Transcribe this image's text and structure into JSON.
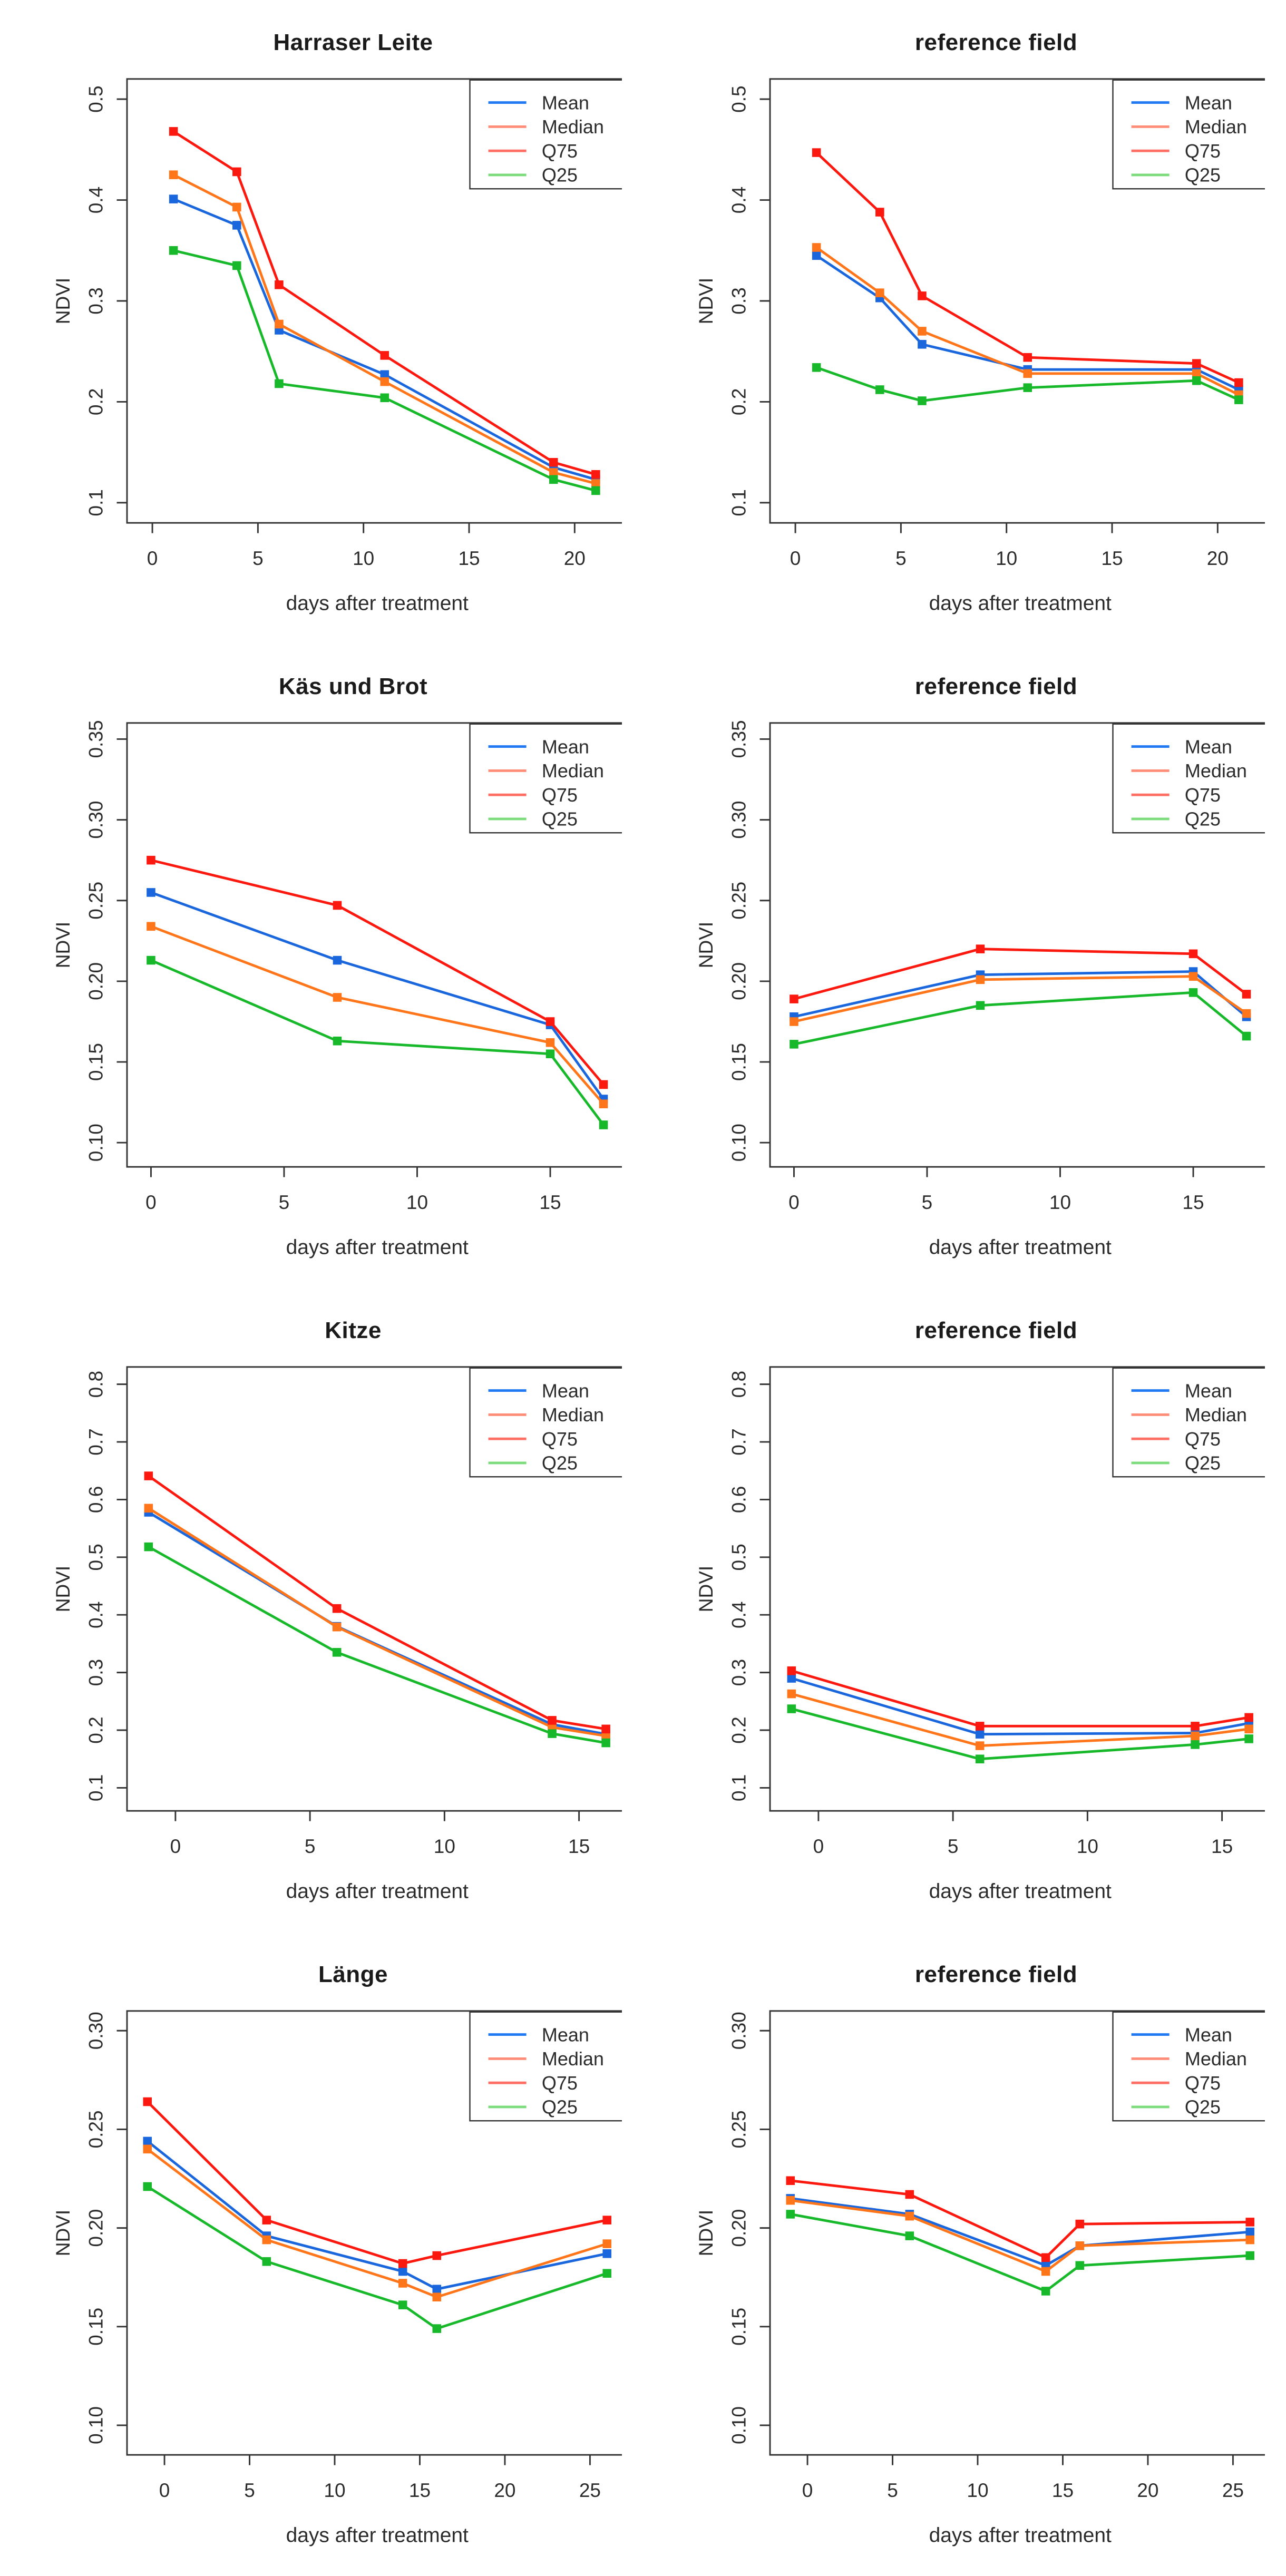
{
  "figure": {
    "background": "#ffffff",
    "rows": 4,
    "cols": 2,
    "description_note": "grid of 8 NDVI line charts"
  },
  "series_styles": {
    "Mean": {
      "color": "#1a66dd",
      "legend_color": "#2079f2"
    },
    "Median": {
      "color": "#ff7519",
      "legend_color": "#ff8d78"
    },
    "Q75": {
      "color": "#fb180e",
      "legend_color": "#ff6e63"
    },
    "Q25": {
      "color": "#17b92b",
      "legend_color": "#7cdc7c"
    }
  },
  "chart_data": [
    {
      "type": "line",
      "title": "Harraser Leite",
      "xlabel": "days after treatment",
      "ylabel": "NDVI",
      "grid": false,
      "legend_position": "top-right",
      "legend": [
        "Mean",
        "Median",
        "Q75",
        "Q25"
      ],
      "x": [
        1,
        4,
        6,
        11,
        19,
        21
      ],
      "xlim": [
        -1.2,
        22.5
      ],
      "ylim": [
        0.08,
        0.52
      ],
      "xticks": [
        0,
        5,
        10,
        15,
        20
      ],
      "yticks": [
        0.1,
        0.2,
        0.3,
        0.4,
        0.5
      ],
      "ytick_labels": [
        "0.1",
        "0.2",
        "0.3",
        "0.4",
        "0.5"
      ],
      "series": [
        {
          "name": "Mean",
          "values": [
            0.401,
            0.375,
            0.271,
            0.227,
            0.135,
            0.123
          ]
        },
        {
          "name": "Median",
          "values": [
            0.425,
            0.393,
            0.277,
            0.22,
            0.13,
            0.119
          ]
        },
        {
          "name": "Q75",
          "values": [
            0.468,
            0.428,
            0.316,
            0.246,
            0.14,
            0.128
          ]
        },
        {
          "name": "Q25",
          "values": [
            0.35,
            0.335,
            0.218,
            0.204,
            0.123,
            0.112
          ]
        }
      ]
    },
    {
      "type": "line",
      "title": "reference field",
      "xlabel": "days after treatment",
      "ylabel": "NDVI",
      "grid": false,
      "legend_position": "top-right",
      "legend": [
        "Mean",
        "Median",
        "Q75",
        "Q25"
      ],
      "x": [
        1,
        4,
        6,
        11,
        19,
        21
      ],
      "xlim": [
        -1.2,
        22.5
      ],
      "ylim": [
        0.08,
        0.52
      ],
      "xticks": [
        0,
        5,
        10,
        15,
        20
      ],
      "yticks": [
        0.1,
        0.2,
        0.3,
        0.4,
        0.5
      ],
      "ytick_labels": [
        "0.1",
        "0.2",
        "0.3",
        "0.4",
        "0.5"
      ],
      "series": [
        {
          "name": "Mean",
          "values": [
            0.345,
            0.303,
            0.257,
            0.232,
            0.232,
            0.212
          ]
        },
        {
          "name": "Median",
          "values": [
            0.353,
            0.308,
            0.27,
            0.228,
            0.228,
            0.207
          ]
        },
        {
          "name": "Q75",
          "values": [
            0.447,
            0.388,
            0.305,
            0.244,
            0.238,
            0.219
          ]
        },
        {
          "name": "Q25",
          "values": [
            0.234,
            0.212,
            0.201,
            0.214,
            0.221,
            0.202
          ]
        }
      ]
    },
    {
      "type": "line",
      "title": "Käs und Brot",
      "xlabel": "days after treatment",
      "ylabel": "NDVI",
      "grid": false,
      "legend_position": "top-right",
      "legend": [
        "Mean",
        "Median",
        "Q75",
        "Q25"
      ],
      "x": [
        0,
        7,
        15,
        17
      ],
      "xlim": [
        -0.9,
        17.9
      ],
      "ylim": [
        0.085,
        0.36
      ],
      "xticks": [
        0,
        5,
        10,
        15
      ],
      "yticks": [
        0.1,
        0.15,
        0.2,
        0.25,
        0.3,
        0.35
      ],
      "ytick_labels": [
        "0.10",
        "0.15",
        "0.20",
        "0.25",
        "0.30",
        "0.35"
      ],
      "series": [
        {
          "name": "Mean",
          "values": [
            0.255,
            0.213,
            0.173,
            0.127
          ]
        },
        {
          "name": "Median",
          "values": [
            0.234,
            0.19,
            0.162,
            0.124
          ]
        },
        {
          "name": "Q75",
          "values": [
            0.275,
            0.247,
            0.175,
            0.136
          ]
        },
        {
          "name": "Q25",
          "values": [
            0.213,
            0.163,
            0.155,
            0.111
          ]
        }
      ]
    },
    {
      "type": "line",
      "title": "reference field",
      "xlabel": "days after treatment",
      "ylabel": "NDVI",
      "grid": false,
      "legend_position": "top-right",
      "legend": [
        "Mean",
        "Median",
        "Q75",
        "Q25"
      ],
      "x": [
        0,
        7,
        15,
        17
      ],
      "xlim": [
        -0.9,
        17.9
      ],
      "ylim": [
        0.085,
        0.36
      ],
      "xticks": [
        0,
        5,
        10,
        15
      ],
      "yticks": [
        0.1,
        0.15,
        0.2,
        0.25,
        0.3,
        0.35
      ],
      "ytick_labels": [
        "0.10",
        "0.15",
        "0.20",
        "0.25",
        "0.30",
        "0.35"
      ],
      "series": [
        {
          "name": "Mean",
          "values": [
            0.178,
            0.204,
            0.206,
            0.178
          ]
        },
        {
          "name": "Median",
          "values": [
            0.175,
            0.201,
            0.203,
            0.18
          ]
        },
        {
          "name": "Q75",
          "values": [
            0.189,
            0.22,
            0.217,
            0.192
          ]
        },
        {
          "name": "Q25",
          "values": [
            0.161,
            0.185,
            0.193,
            0.166
          ]
        }
      ]
    },
    {
      "type": "line",
      "title": "Kitze",
      "xlabel": "days after treatment",
      "ylabel": "NDVI",
      "grid": false,
      "legend_position": "top-right",
      "legend": [
        "Mean",
        "Median",
        "Q75",
        "Q25"
      ],
      "x": [
        -1,
        6,
        14,
        16
      ],
      "xlim": [
        -1.8,
        16.8
      ],
      "ylim": [
        0.06,
        0.83
      ],
      "xticks": [
        0,
        5,
        10,
        15
      ],
      "yticks": [
        0.1,
        0.2,
        0.3,
        0.4,
        0.5,
        0.6,
        0.7,
        0.8
      ],
      "ytick_labels": [
        "0.1",
        "0.2",
        "0.3",
        "0.4",
        "0.5",
        "0.6",
        "0.7",
        "0.8"
      ],
      "series": [
        {
          "name": "Mean",
          "values": [
            0.578,
            0.38,
            0.21,
            0.193
          ]
        },
        {
          "name": "Median",
          "values": [
            0.585,
            0.379,
            0.205,
            0.19
          ]
        },
        {
          "name": "Q75",
          "values": [
            0.641,
            0.411,
            0.217,
            0.202
          ]
        },
        {
          "name": "Q25",
          "values": [
            0.518,
            0.335,
            0.194,
            0.178
          ]
        }
      ]
    },
    {
      "type": "line",
      "title": "reference field",
      "xlabel": "days after treatment",
      "ylabel": "NDVI",
      "grid": false,
      "legend_position": "top-right",
      "legend": [
        "Mean",
        "Median",
        "Q75",
        "Q25"
      ],
      "x": [
        -1,
        6,
        14,
        16
      ],
      "xlim": [
        -1.8,
        16.8
      ],
      "ylim": [
        0.06,
        0.83
      ],
      "xticks": [
        0,
        5,
        10,
        15
      ],
      "yticks": [
        0.1,
        0.2,
        0.3,
        0.4,
        0.5,
        0.6,
        0.7,
        0.8
      ],
      "ytick_labels": [
        "0.1",
        "0.2",
        "0.3",
        "0.4",
        "0.5",
        "0.6",
        "0.7",
        "0.8"
      ],
      "series": [
        {
          "name": "Mean",
          "values": [
            0.29,
            0.193,
            0.195,
            0.212
          ]
        },
        {
          "name": "Median",
          "values": [
            0.263,
            0.173,
            0.19,
            0.202
          ]
        },
        {
          "name": "Q75",
          "values": [
            0.303,
            0.207,
            0.207,
            0.222
          ]
        },
        {
          "name": "Q25",
          "values": [
            0.237,
            0.15,
            0.175,
            0.185
          ]
        }
      ]
    },
    {
      "type": "line",
      "title": "Länge",
      "xlabel": "days after treatment",
      "ylabel": "NDVI",
      "grid": false,
      "legend_position": "top-right",
      "legend": [
        "Mean",
        "Median",
        "Q75",
        "Q25"
      ],
      "x": [
        -1,
        6,
        14,
        16,
        26
      ],
      "xlim": [
        -2.2,
        27.2
      ],
      "ylim": [
        0.085,
        0.31
      ],
      "xticks": [
        0,
        5,
        10,
        15,
        20,
        25
      ],
      "yticks": [
        0.1,
        0.15,
        0.2,
        0.25,
        0.3
      ],
      "ytick_labels": [
        "0.10",
        "0.15",
        "0.20",
        "0.25",
        "0.30"
      ],
      "series": [
        {
          "name": "Mean",
          "values": [
            0.244,
            0.196,
            0.178,
            0.169,
            0.187
          ]
        },
        {
          "name": "Median",
          "values": [
            0.24,
            0.194,
            0.172,
            0.165,
            0.192
          ]
        },
        {
          "name": "Q75",
          "values": [
            0.264,
            0.204,
            0.182,
            0.186,
            0.204
          ]
        },
        {
          "name": "Q25",
          "values": [
            0.221,
            0.183,
            0.161,
            0.149,
            0.177
          ]
        }
      ]
    },
    {
      "type": "line",
      "title": "reference field",
      "xlabel": "days after treatment",
      "ylabel": "NDVI",
      "grid": false,
      "legend_position": "top-right",
      "legend": [
        "Mean",
        "Median",
        "Q75",
        "Q25"
      ],
      "x": [
        -1,
        6,
        14,
        16,
        26
      ],
      "xlim": [
        -2.2,
        27.2
      ],
      "ylim": [
        0.085,
        0.31
      ],
      "xticks": [
        0,
        5,
        10,
        15,
        20,
        25
      ],
      "yticks": [
        0.1,
        0.15,
        0.2,
        0.25,
        0.3
      ],
      "ytick_labels": [
        "0.10",
        "0.15",
        "0.20",
        "0.25",
        "0.30"
      ],
      "series": [
        {
          "name": "Mean",
          "values": [
            0.215,
            0.207,
            0.181,
            0.191,
            0.198
          ]
        },
        {
          "name": "Median",
          "values": [
            0.214,
            0.206,
            0.178,
            0.191,
            0.194
          ]
        },
        {
          "name": "Q75",
          "values": [
            0.224,
            0.217,
            0.185,
            0.202,
            0.203
          ]
        },
        {
          "name": "Q25",
          "values": [
            0.207,
            0.196,
            0.168,
            0.181,
            0.186
          ]
        }
      ]
    }
  ]
}
